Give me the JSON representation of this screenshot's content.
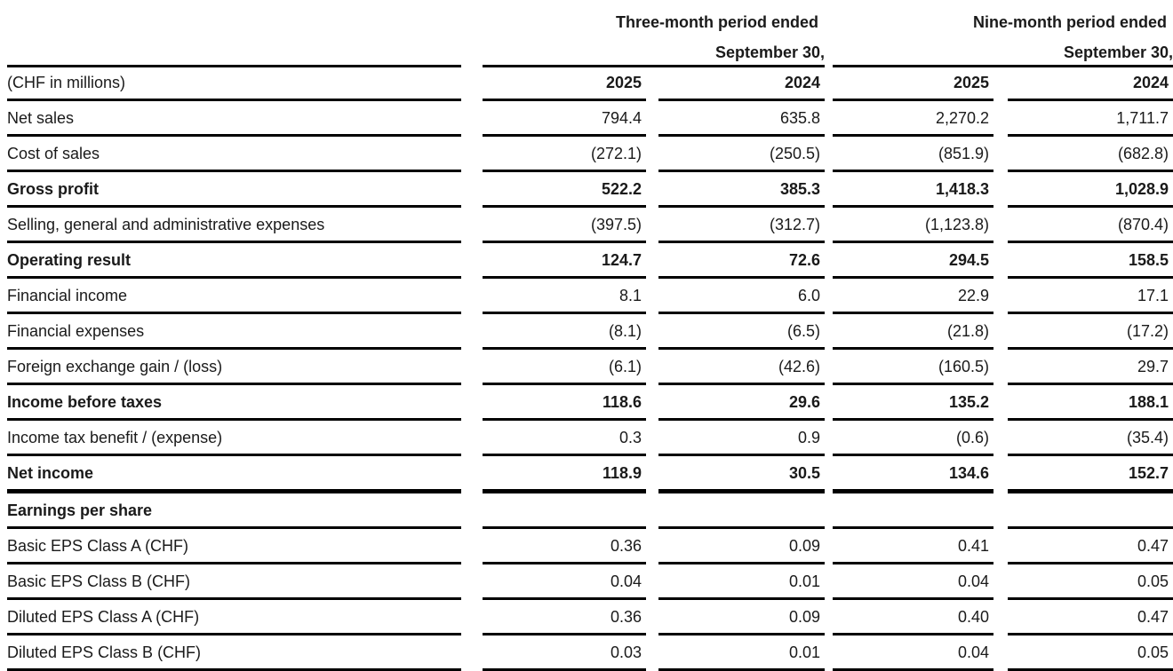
{
  "table": {
    "units_label": "(CHF in millions)",
    "column_groups": [
      {
        "title": "Three-month period ended",
        "subtitle": "September 30,"
      },
      {
        "title": "Nine-month period ended",
        "subtitle": "September 30,"
      }
    ],
    "year_headers": [
      "2025",
      "2024",
      "2025",
      "2024"
    ],
    "rows": [
      {
        "label": "Net sales",
        "bold": false,
        "thick_bottom": false,
        "values": [
          "794.4",
          "635.8",
          "2,270.2",
          "1,711.7"
        ]
      },
      {
        "label": "Cost of sales",
        "bold": false,
        "thick_bottom": false,
        "values": [
          "(272.1)",
          "(250.5)",
          "(851.9)",
          "(682.8)"
        ]
      },
      {
        "label": "Gross profit",
        "bold": true,
        "thick_bottom": false,
        "values": [
          "522.2",
          "385.3",
          "1,418.3",
          "1,028.9"
        ]
      },
      {
        "label": "Selling, general and administrative expenses",
        "bold": false,
        "thick_bottom": false,
        "values": [
          "(397.5)",
          "(312.7)",
          "(1,123.8)",
          "(870.4)"
        ]
      },
      {
        "label": "Operating result",
        "bold": true,
        "thick_bottom": false,
        "values": [
          "124.7",
          "72.6",
          "294.5",
          "158.5"
        ]
      },
      {
        "label": "Financial income",
        "bold": false,
        "thick_bottom": false,
        "values": [
          "8.1",
          "6.0",
          "22.9",
          "17.1"
        ]
      },
      {
        "label": "Financial expenses",
        "bold": false,
        "thick_bottom": false,
        "values": [
          "(8.1)",
          "(6.5)",
          "(21.8)",
          "(17.2)"
        ]
      },
      {
        "label": "Foreign exchange gain / (loss)",
        "bold": false,
        "thick_bottom": false,
        "values": [
          "(6.1)",
          "(42.6)",
          "(160.5)",
          "29.7"
        ]
      },
      {
        "label": "Income before taxes",
        "bold": true,
        "thick_bottom": false,
        "values": [
          "118.6",
          "29.6",
          "135.2",
          "188.1"
        ]
      },
      {
        "label": "Income tax benefit / (expense)",
        "bold": false,
        "thick_bottom": false,
        "values": [
          "0.3",
          "0.9",
          "(0.6)",
          "(35.4)"
        ]
      },
      {
        "label": "Net income",
        "bold": true,
        "thick_bottom": true,
        "values": [
          "118.9",
          "30.5",
          "134.6",
          "152.7"
        ]
      },
      {
        "label": "Earnings per share",
        "bold": true,
        "thick_bottom": false,
        "values": [
          "",
          "",
          "",
          ""
        ]
      },
      {
        "label": "Basic EPS Class A (CHF)",
        "bold": false,
        "thick_bottom": false,
        "values": [
          "0.36",
          "0.09",
          "0.41",
          "0.47"
        ]
      },
      {
        "label": "Basic EPS Class B (CHF)",
        "bold": false,
        "thick_bottom": false,
        "values": [
          "0.04",
          "0.01",
          "0.04",
          "0.05"
        ]
      },
      {
        "label": "Diluted EPS Class A (CHF)",
        "bold": false,
        "thick_bottom": false,
        "values": [
          "0.36",
          "0.09",
          "0.40",
          "0.47"
        ]
      },
      {
        "label": "Diluted EPS Class B (CHF)",
        "bold": false,
        "thick_bottom": false,
        "values": [
          "0.03",
          "0.01",
          "0.04",
          "0.05"
        ]
      }
    ]
  },
  "colors": {
    "text": "#1a1a1a",
    "rule": "#000000",
    "background": "#ffffff"
  }
}
